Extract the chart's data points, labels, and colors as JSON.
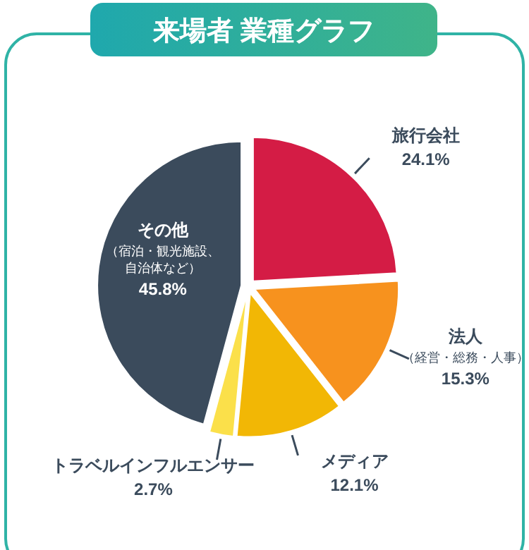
{
  "chart_data": {
    "type": "pie",
    "title": "来場者 業種グラフ",
    "categories": [
      "旅行会社",
      "法人（経営・総務・人事）",
      "メディア",
      "トラベルインフルエンサー",
      "その他（宿泊・観光施設、自治体など）"
    ],
    "values": [
      24.1,
      15.3,
      12.1,
      2.7,
      45.8
    ],
    "value_labels": [
      "24.1%",
      "15.3%",
      "12.1%",
      "2.7%",
      "45.8%"
    ],
    "colors": [
      "#d41c45",
      "#f7921e",
      "#f2b705",
      "#fbe04a",
      "#3b4b5c"
    ]
  }
}
